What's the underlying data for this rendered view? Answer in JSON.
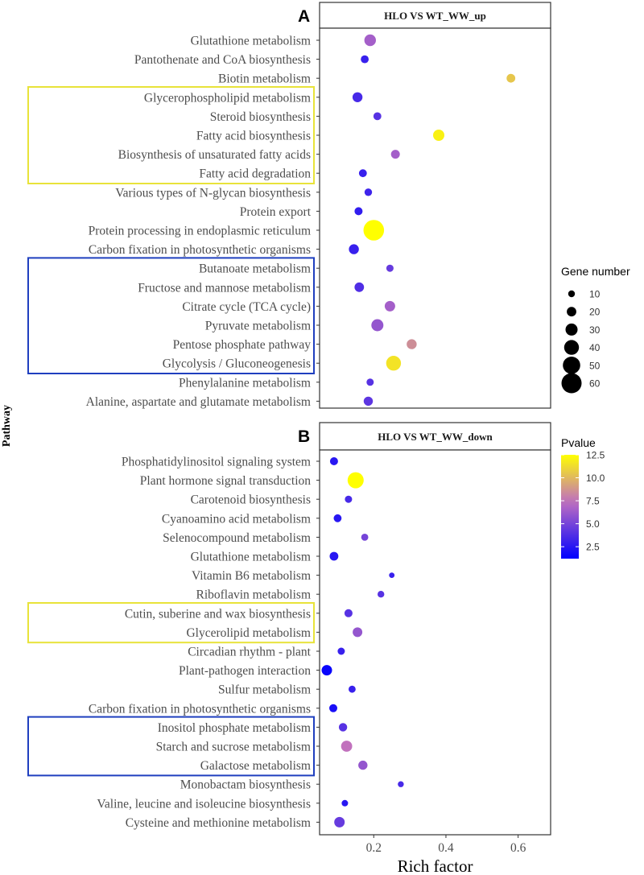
{
  "chart_data": {
    "type": "scatter",
    "xlabel": "Rich factor",
    "ylabel": "Pathway",
    "xlim": [
      0.05,
      0.69
    ],
    "xticks": [
      0.2,
      0.4,
      0.6
    ],
    "xtick_labels": [
      "0.2",
      "0.4",
      "0.6"
    ],
    "panels": [
      {
        "letter": "A",
        "title": "HLO VS WT_WW_up",
        "categories": [
          "Glutathione metabolism",
          "Pantothenate and CoA biosynthesis",
          "Biotin metabolism",
          "Glycerophospholipid metabolism",
          "Steroid biosynthesis",
          "Fatty acid biosynthesis",
          "Biosynthesis of unsaturated fatty acids",
          "Fatty acid degradation",
          "Various types of N-glycan biosynthesis",
          "Protein export",
          "Protein processing in endoplasmic reticulum",
          "Carbon fixation in photosynthetic organisms",
          "Butanoate metabolism",
          "Fructose and mannose metabolism",
          "Citrate cycle (TCA cycle)",
          "Pyruvate metabolism",
          "Pentose phosphate pathway",
          "Glycolysis / Gluconeogenesis",
          "Phenylalanine metabolism",
          "Alanine, aspartate and glutamate metabolism"
        ],
        "rich_factor": [
          0.19,
          0.175,
          0.58,
          0.155,
          0.21,
          0.38,
          0.26,
          0.17,
          0.185,
          0.158,
          0.2,
          0.145,
          0.245,
          0.16,
          0.245,
          0.21,
          0.305,
          0.255,
          0.19,
          0.185
        ],
        "gene_number": [
          28,
          14,
          17,
          22,
          14,
          27,
          18,
          14,
          13,
          15,
          62,
          22,
          12,
          20,
          24,
          30,
          22,
          40,
          12,
          19
        ],
        "pvalue": [
          6.5,
          3.0,
          10.5,
          3.5,
          4.0,
          12.0,
          6.5,
          3.0,
          3.2,
          2.8,
          12.5,
          3.0,
          4.5,
          3.8,
          6.5,
          6.0,
          8.5,
          11.5,
          4.0,
          4.2
        ],
        "boxes": [
          {
            "color": "#e8e33a",
            "from": 3,
            "to": 7
          },
          {
            "color": "#1f3fbf",
            "from": 12,
            "to": 17
          }
        ]
      },
      {
        "letter": "B",
        "title": "HLO VS WT_WW_down",
        "categories": [
          "Phosphatidylinositol signaling system",
          "Plant hormone signal transduction",
          "Carotenoid biosynthesis",
          "Cyanoamino acid metabolism",
          "Selenocompound metabolism",
          "Glutathione metabolism",
          "Vitamin B6 metabolism",
          "Riboflavin metabolism",
          "Cutin, suberine and wax biosynthesis",
          "Glycerolipid metabolism",
          "Circadian rhythm - plant",
          "Plant-pathogen interaction",
          "Sulfur metabolism",
          "Carbon fixation in photosynthetic organisms",
          "Inositol phosphate metabolism",
          "Starch and sucrose metabolism",
          "Galactose metabolism",
          "Monobactam biosynthesis",
          "Valine, leucine and isoleucine biosynthesis",
          "Cysteine and methionine metabolism"
        ],
        "rich_factor": [
          0.09,
          0.15,
          0.13,
          0.1,
          0.175,
          0.09,
          0.25,
          0.22,
          0.13,
          0.155,
          0.11,
          0.07,
          0.14,
          0.088,
          0.115,
          0.125,
          0.17,
          0.275,
          0.12,
          0.105
        ],
        "gene_number": [
          15,
          45,
          12,
          14,
          11,
          17,
          5,
          10,
          15,
          21,
          12,
          24,
          11,
          15,
          16,
          26,
          19,
          7,
          9,
          24
        ],
        "pvalue": [
          2.5,
          12.5,
          3.5,
          2.5,
          5.0,
          2.5,
          3.0,
          4.0,
          4.0,
          6.0,
          3.0,
          1.5,
          3.0,
          2.0,
          4.0,
          7.5,
          6.0,
          3.5,
          2.5,
          4.5
        ],
        "boxes": [
          {
            "color": "#e8e33a",
            "from": 8,
            "to": 9
          },
          {
            "color": "#1f3fbf",
            "from": 14,
            "to": 16
          }
        ]
      }
    ],
    "size_legend": {
      "title": "Gene number",
      "values": [
        10,
        20,
        30,
        40,
        50,
        60
      ],
      "labels": [
        "10",
        "20",
        "30",
        "40",
        "50",
        "60"
      ]
    },
    "color_legend": {
      "title": "Pvalue",
      "range": [
        1.2,
        12.5
      ],
      "ticks": [
        2.5,
        5.0,
        7.5,
        10.0,
        12.5
      ],
      "labels": [
        "2.5",
        "5.0",
        "7.5",
        "10.0",
        "12.5"
      ],
      "low_color": "#0000ff",
      "mid_color": "#c06fc0",
      "high_color": "#ffff00"
    }
  }
}
